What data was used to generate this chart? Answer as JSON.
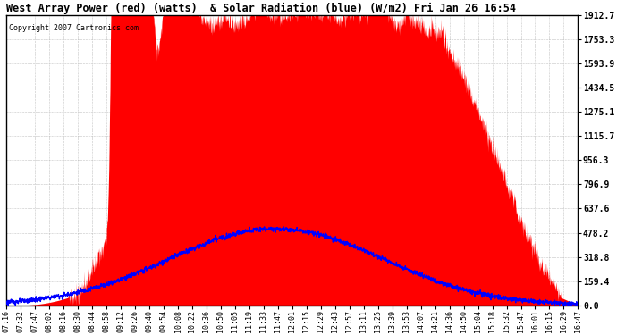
{
  "title": "West Array Power (red) (watts)  & Solar Radiation (blue) (W/m2) Fri Jan 26 16:54",
  "copyright": "Copyright 2007 Cartronics.com",
  "ylabel_right": [
    "1912.7",
    "1753.3",
    "1593.9",
    "1434.5",
    "1275.1",
    "1115.7",
    "956.3",
    "796.9",
    "637.6",
    "478.2",
    "318.8",
    "159.4",
    "0.0"
  ],
  "ymax": 1912.7,
  "ymin": 0.0,
  "background_color": "#ffffff",
  "x_labels": [
    "07:16",
    "07:32",
    "07:47",
    "08:02",
    "08:16",
    "08:30",
    "08:44",
    "08:58",
    "09:12",
    "09:26",
    "09:40",
    "09:54",
    "10:08",
    "10:22",
    "10:36",
    "10:50",
    "11:05",
    "11:19",
    "11:33",
    "11:47",
    "12:01",
    "12:15",
    "12:29",
    "12:43",
    "12:57",
    "13:11",
    "13:25",
    "13:39",
    "13:53",
    "14:07",
    "14:21",
    "14:36",
    "14:50",
    "15:04",
    "15:18",
    "15:32",
    "15:47",
    "16:01",
    "16:15",
    "16:29",
    "16:47"
  ],
  "grid_color": "#aaaaaa",
  "red_color": "#ff0000",
  "blue_color": "#0000ff"
}
